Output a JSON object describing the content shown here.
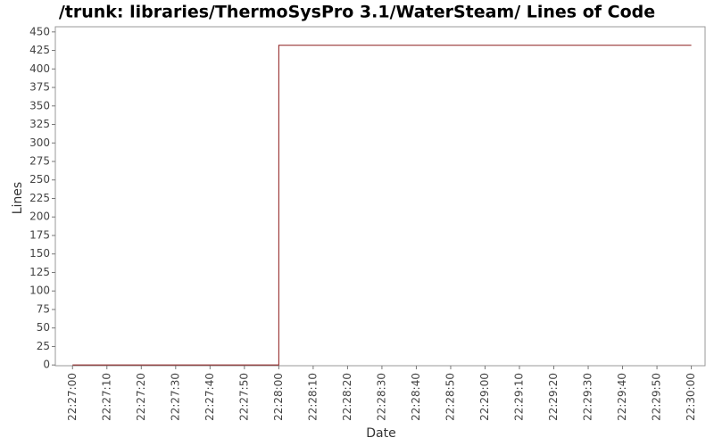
{
  "chart_data": {
    "type": "step-line",
    "title": "/trunk: libraries/ThermoSysPro 3.1/WaterSteam/ Lines of Code",
    "x_label": "Date",
    "y_label": "Lines",
    "x": [
      "22:27:00",
      "22:28:00",
      "22:30:00"
    ],
    "series": [
      {
        "name": "Lines",
        "color": "#8b1a1a",
        "values": [
          0,
          432,
          432
        ]
      }
    ],
    "step": "post",
    "xlim": [
      "22:26:55",
      "22:30:04"
    ],
    "xticks": [
      "22:27:00",
      "22:27:10",
      "22:27:20",
      "22:27:30",
      "22:27:40",
      "22:27:50",
      "22:28:00",
      "22:28:10",
      "22:28:20",
      "22:28:30",
      "22:28:40",
      "22:28:50",
      "22:29:00",
      "22:29:10",
      "22:29:20",
      "22:29:30",
      "22:29:40",
      "22:29:50",
      "22:30:00"
    ],
    "ylim": [
      -1,
      457
    ],
    "yticks": [
      0,
      25,
      50,
      75,
      100,
      125,
      150,
      175,
      200,
      225,
      250,
      275,
      300,
      325,
      350,
      375,
      400,
      425,
      450
    ],
    "grid": false
  }
}
